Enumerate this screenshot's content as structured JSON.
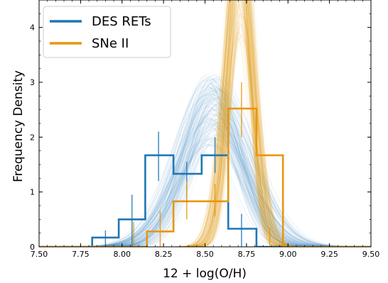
{
  "chart_data": {
    "type": "histogram_with_kde",
    "xlabel": "12 + log(O/H)",
    "ylabel": "Frequency Density",
    "xlim": [
      7.5,
      9.5
    ],
    "ylim": [
      0,
      4.5
    ],
    "xticks": [
      7.5,
      7.75,
      8.0,
      8.25,
      8.5,
      8.75,
      9.0,
      9.25,
      9.5
    ],
    "xtick_labels": [
      "7.50",
      "7.75",
      "8.00",
      "8.25",
      "8.50",
      "8.75",
      "9.00",
      "9.25",
      "9.50"
    ],
    "yticks": [
      0,
      1,
      2,
      3,
      4
    ],
    "ytick_labels": [
      "0",
      "1",
      "2",
      "3",
      "4"
    ],
    "legend_position": "upper-left",
    "series": [
      {
        "name": "DES RETs",
        "color": "#1f77b4",
        "bin_edges": [
          7.5,
          7.82,
          7.98,
          8.14,
          8.31,
          8.48,
          8.64,
          8.81,
          8.97,
          9.5
        ],
        "hist_values": [
          0,
          0.17,
          0.5,
          1.67,
          1.33,
          1.67,
          0.33,
          0,
          0
        ],
        "error_bars": [
          {
            "x": 7.9,
            "low": 0.0,
            "high": 0.3
          },
          {
            "x": 8.06,
            "low": 0.0,
            "high": 0.95
          },
          {
            "x": 8.22,
            "low": 1.2,
            "high": 2.1
          },
          {
            "x": 8.39,
            "low": 0.8,
            "high": 1.55
          },
          {
            "x": 8.56,
            "low": 1.35,
            "high": 2.0
          },
          {
            "x": 8.72,
            "low": 0.0,
            "high": 0.6
          }
        ],
        "kde_peak_x": 8.55,
        "kde_width": 0.18,
        "kde_peak_y": 2.45
      },
      {
        "name": "SNe II",
        "color": "#e8960c",
        "bin_edges": [
          7.5,
          8.15,
          8.31,
          8.48,
          8.64,
          8.81,
          8.97,
          9.5
        ],
        "hist_values": [
          0,
          0.28,
          0.83,
          0.83,
          2.52,
          1.67,
          0
        ],
        "error_bars": [
          {
            "x": 8.07,
            "low": 0.0,
            "high": 0.45
          },
          {
            "x": 8.23,
            "low": 0.0,
            "high": 0.65
          },
          {
            "x": 8.39,
            "low": 0.5,
            "high": 1.2
          },
          {
            "x": 8.56,
            "low": 0.55,
            "high": 1.15
          },
          {
            "x": 8.72,
            "low": 2.0,
            "high": 3.0
          },
          {
            "x": 8.89,
            "low": 0.0,
            "high": 0.35
          }
        ],
        "kde_peak_x": 8.71,
        "kde_width": 0.075,
        "kde_peak_y": 5.0
      }
    ]
  }
}
